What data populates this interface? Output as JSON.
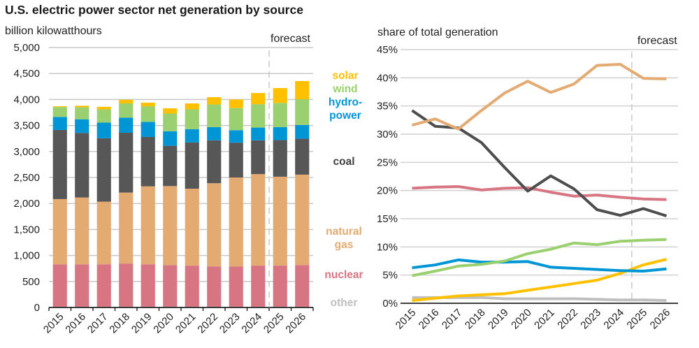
{
  "title": "U.S. electric power sector net generation by source",
  "chart_data": [
    {
      "type": "bar",
      "stacked": true,
      "ylabel": "billion kilowatthours",
      "ylim": [
        0,
        5000
      ],
      "yticks": [
        0,
        500,
        1000,
        1500,
        2000,
        2500,
        3000,
        3500,
        4000,
        4500,
        5000
      ],
      "ytick_labels": [
        "0",
        "500",
        "1,000",
        "1,500",
        "2,000",
        "2,500",
        "3,000",
        "3,500",
        "4,000",
        "4,500",
        "5,000"
      ],
      "categories": [
        "2015",
        "2016",
        "2017",
        "2018",
        "2019",
        "2020",
        "2021",
        "2022",
        "2023",
        "2024",
        "2025",
        "2026"
      ],
      "forecast_label": "forecast",
      "forecast_start": "2025",
      "grid": true,
      "series": [
        {
          "name": "other",
          "label": "other",
          "color": "#BFBFBF",
          "values": [
            15,
            15,
            15,
            15,
            15,
            15,
            15,
            15,
            15,
            15,
            15,
            15
          ]
        },
        {
          "name": "nuclear",
          "label": "nuclear",
          "color": "#D87583",
          "values": [
            815,
            815,
            815,
            830,
            815,
            800,
            790,
            775,
            775,
            790,
            790,
            800
          ]
        },
        {
          "name": "natural gas",
          "label": "natural\ngas",
          "color": "#E3AA72",
          "values": [
            1255,
            1285,
            1205,
            1365,
            1500,
            1520,
            1480,
            1600,
            1710,
            1760,
            1710,
            1740
          ]
        },
        {
          "name": "coal",
          "label": "coal",
          "color": "#575757",
          "values": [
            1330,
            1240,
            1220,
            1150,
            950,
            775,
            890,
            825,
            670,
            650,
            705,
            690
          ]
        },
        {
          "name": "hydropower",
          "label": "hydro-\npower",
          "color": "#0096D6",
          "values": [
            250,
            265,
            300,
            290,
            290,
            280,
            255,
            255,
            240,
            245,
            250,
            265
          ]
        },
        {
          "name": "wind",
          "label": "wind",
          "color": "#9BD070",
          "values": [
            190,
            230,
            255,
            275,
            300,
            340,
            380,
            435,
            425,
            450,
            465,
            495
          ]
        },
        {
          "name": "solar",
          "label": "solar",
          "color": "#FFC000",
          "values": [
            15,
            30,
            50,
            70,
            70,
            100,
            115,
            140,
            165,
            215,
            285,
            350
          ]
        }
      ]
    },
    {
      "type": "line",
      "ylabel": "share of total generation",
      "ylim": [
        0,
        45
      ],
      "yticks": [
        0,
        5,
        10,
        15,
        20,
        25,
        30,
        35,
        40,
        45
      ],
      "ytick_labels": [
        "0%",
        "5%",
        "10%",
        "15%",
        "20%",
        "25%",
        "30%",
        "35%",
        "40%",
        "45%"
      ],
      "x": [
        "2015",
        "2016",
        "2017",
        "2018",
        "2019",
        "2020",
        "2021",
        "2022",
        "2023",
        "2024",
        "2025",
        "2026"
      ],
      "forecast_label": "forecast",
      "forecast_start": "2025",
      "grid": true,
      "series": [
        {
          "name": "natural gas",
          "color": "#E3AA72",
          "values": [
            31.6,
            32.7,
            30.9,
            34.2,
            37.3,
            39.4,
            37.4,
            38.9,
            42.2,
            42.4,
            39.9,
            39.8
          ]
        },
        {
          "name": "coal",
          "color": "#4D4D4D",
          "values": [
            34.2,
            31.4,
            31.1,
            28.5,
            24.1,
            19.9,
            22.6,
            20.3,
            16.6,
            15.6,
            16.8,
            15.5
          ]
        },
        {
          "name": "nuclear",
          "color": "#D87583",
          "values": [
            20.4,
            20.6,
            20.7,
            20.1,
            20.4,
            20.5,
            19.7,
            19.0,
            19.2,
            18.8,
            18.5,
            18.4
          ]
        },
        {
          "name": "wind",
          "color": "#9BD070",
          "values": [
            4.9,
            5.7,
            6.6,
            6.9,
            7.5,
            8.8,
            9.6,
            10.7,
            10.4,
            11.0,
            11.2,
            11.3
          ]
        },
        {
          "name": "hydropower",
          "color": "#0096D6",
          "values": [
            6.3,
            6.8,
            7.7,
            7.3,
            7.3,
            7.4,
            6.4,
            6.2,
            6.0,
            5.8,
            5.7,
            6.1
          ]
        },
        {
          "name": "solar",
          "color": "#FFC000",
          "values": [
            0.5,
            0.9,
            1.3,
            1.5,
            1.7,
            2.3,
            2.9,
            3.5,
            4.1,
            5.3,
            6.8,
            7.8
          ]
        },
        {
          "name": "other",
          "color": "#BFBFBF",
          "values": [
            1.0,
            1.0,
            1.0,
            1.0,
            0.8,
            0.8,
            0.8,
            0.8,
            0.7,
            0.6,
            0.6,
            0.5
          ]
        }
      ]
    }
  ]
}
